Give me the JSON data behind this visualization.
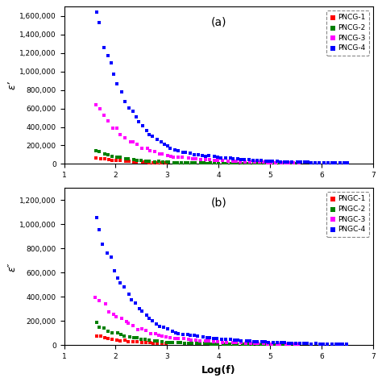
{
  "subplot_a": {
    "label": "(a)",
    "ylabel": "ε’",
    "ylim": [
      0,
      1700000
    ],
    "yticks": [
      0,
      200000,
      400000,
      600000,
      800000,
      1000000,
      1200000,
      1400000,
      1600000
    ],
    "ytick_labels": [
      "0",
      "200,000",
      "400,000",
      "600,000",
      "800,000",
      "1,000,000",
      "1,200,000",
      "1,400,000",
      "1,600,000"
    ],
    "legend_labels": [
      "PNCG-1",
      "PNCG-2",
      "PNCG-3",
      "PNCG-4"
    ]
  },
  "subplot_b": {
    "label": "(b)",
    "ylabel": "ε″",
    "ylim": [
      0,
      1300000
    ],
    "yticks": [
      0,
      200000,
      400000,
      600000,
      800000,
      1000000,
      1200000
    ],
    "ytick_labels": [
      "0",
      "200,000",
      "400,000",
      "600,000",
      "800,000",
      "1,000,000",
      "1,200,000"
    ],
    "legend_labels": [
      "PNGC-1",
      "PNGC-2",
      "PNGC-3",
      "PNGC-4"
    ]
  },
  "xlabel": "Log(f)",
  "xlim": [
    1,
    7
  ],
  "xticks": [
    1,
    2,
    3,
    4,
    5,
    6,
    7
  ],
  "colors": {
    "s1": "#FF0000",
    "s2": "#008000",
    "s3": "#FF00FF",
    "s4": "#0000FF"
  },
  "marker_size": 3,
  "background": "#FFFFFF"
}
